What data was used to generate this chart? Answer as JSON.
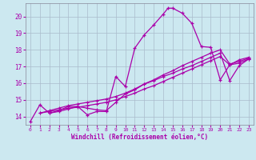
{
  "background_color": "#cce8f0",
  "grid_color": "#aabbcc",
  "line_color": "#aa00aa",
  "xlim": [
    -0.5,
    23.5
  ],
  "ylim": [
    13.5,
    20.8
  ],
  "xticks": [
    0,
    1,
    2,
    3,
    4,
    5,
    6,
    7,
    8,
    9,
    10,
    11,
    12,
    13,
    14,
    15,
    16,
    17,
    18,
    19,
    20,
    21,
    22,
    23
  ],
  "yticks": [
    14,
    15,
    16,
    17,
    18,
    19,
    20
  ],
  "xlabel": "Windchill (Refroidissement éolien,°C)",
  "curve1_x": [
    0,
    1,
    2,
    3,
    4,
    5,
    6,
    7,
    8,
    9,
    10,
    11,
    12,
    13,
    14,
    14.5,
    15,
    16,
    17,
    18,
    19,
    20,
    21,
    22,
    23
  ],
  "curve1_y": [
    13.7,
    14.7,
    14.2,
    14.3,
    14.45,
    14.6,
    14.1,
    14.3,
    14.3,
    16.4,
    15.8,
    18.1,
    18.9,
    19.5,
    20.15,
    20.5,
    20.5,
    20.2,
    19.6,
    18.2,
    18.15,
    16.2,
    17.1,
    17.4,
    17.55
  ],
  "curve2_x": [
    1,
    2,
    3,
    4,
    5,
    6,
    7,
    8,
    9,
    10,
    11,
    12,
    13,
    14,
    15,
    16,
    17,
    18,
    19,
    20,
    21,
    22,
    23
  ],
  "curve2_y": [
    14.2,
    14.3,
    14.4,
    14.5,
    14.55,
    14.65,
    14.75,
    14.85,
    15.0,
    15.2,
    15.4,
    15.65,
    15.85,
    16.1,
    16.35,
    16.6,
    16.85,
    17.1,
    17.35,
    17.6,
    17.1,
    17.2,
    17.45
  ],
  "curve3_x": [
    1,
    2,
    3,
    4,
    5,
    6,
    7,
    8,
    9,
    10,
    11,
    12,
    13,
    14,
    15,
    16,
    17,
    18,
    19,
    20,
    21,
    22,
    23
  ],
  "curve3_y": [
    14.2,
    14.35,
    14.5,
    14.65,
    14.75,
    14.85,
    14.95,
    15.05,
    15.2,
    15.4,
    15.65,
    15.95,
    16.2,
    16.5,
    16.75,
    17.05,
    17.3,
    17.55,
    17.8,
    18.0,
    17.15,
    17.3,
    17.5
  ],
  "curve4_x": [
    2,
    3,
    4,
    5,
    6,
    7,
    8,
    9,
    10,
    11,
    12,
    13,
    14,
    15,
    16,
    17,
    18,
    19,
    20,
    21,
    22,
    23
  ],
  "curve4_y": [
    14.2,
    14.35,
    14.6,
    14.6,
    14.5,
    14.4,
    14.35,
    14.85,
    15.35,
    15.6,
    15.95,
    16.15,
    16.4,
    16.6,
    16.85,
    17.05,
    17.3,
    17.55,
    17.8,
    16.15,
    17.05,
    17.45
  ]
}
